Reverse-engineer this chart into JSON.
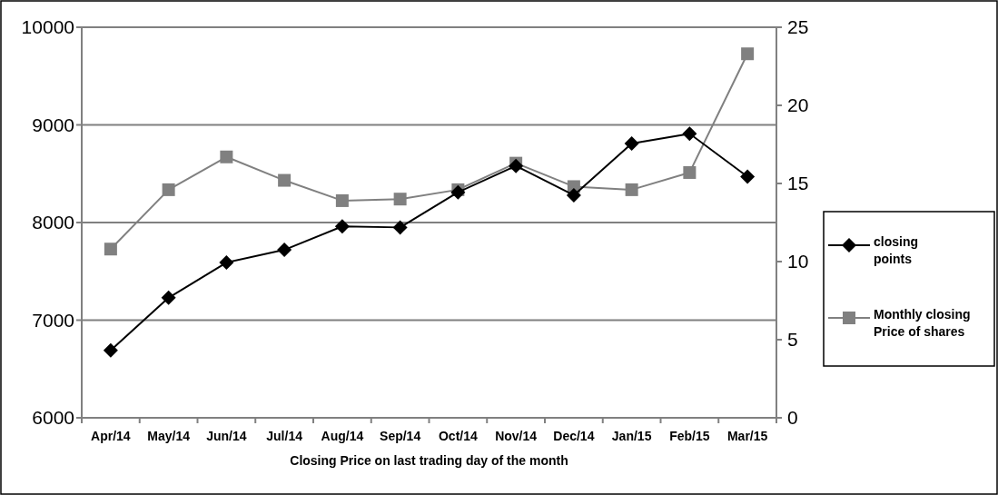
{
  "chart_data": {
    "type": "line",
    "xlabel": "Closing Price on last trading day of the month",
    "categories": [
      "Apr/14",
      "May/14",
      "Jun/14",
      "Jul/14",
      "Aug/14",
      "Sep/14",
      "Oct/14",
      "Nov/14",
      "Dec/14",
      "Jan/15",
      "Feb/15",
      "Mar/15"
    ],
    "series": [
      {
        "name": "closing points",
        "color": "#000000",
        "marker": "diamond",
        "values": [
          6690,
          7230,
          7590,
          7720,
          7960,
          7950,
          8310,
          8580,
          8280,
          8810,
          8910,
          8470
        ]
      },
      {
        "name": "Monthly closing Price of shares",
        "color": "#808080",
        "marker": "square",
        "axis": "y2",
        "values": [
          10.8,
          14.6,
          16.7,
          15.2,
          13.9,
          14.0,
          14.6,
          16.3,
          14.8,
          14.6,
          15.7,
          23.3
        ]
      }
    ],
    "ylim": [
      6000,
      10000
    ],
    "yticks": [
      6000,
      7000,
      8000,
      9000,
      10000
    ],
    "y2lim": [
      0,
      25
    ],
    "y2ticks": [
      0,
      5,
      10,
      15,
      20,
      25
    ],
    "grid": "y",
    "legend": "right"
  }
}
